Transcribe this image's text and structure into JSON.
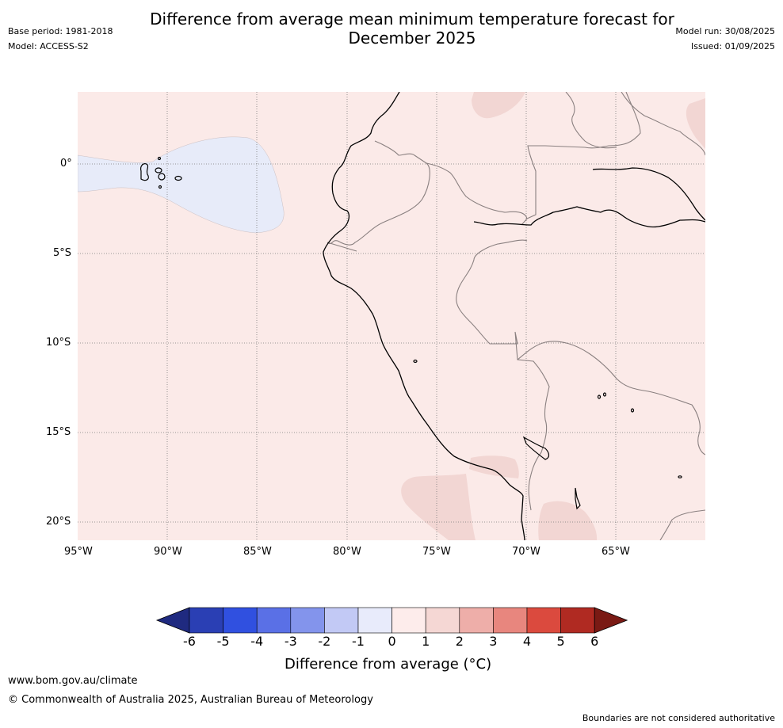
{
  "title_line1": "Difference from average mean minimum temperature forecast for",
  "title_line2": "December 2025",
  "base_period": "Base period: 1981-2018",
  "model": "Model: ACCESS-S2",
  "model_run": "Model run: 30/08/2025",
  "issued": "Issued: 01/09/2025",
  "map": {
    "lat_labels": [
      "0°",
      "5°S",
      "10°S",
      "15°S",
      "20°S"
    ],
    "lon_labels": [
      "95°W",
      "90°W",
      "85°W",
      "80°W",
      "75°W",
      "70°W",
      "65°W"
    ],
    "background_color": "#fbeae8",
    "cool_region_color": "#e7ebf9",
    "warm_region_color": "#f2d6d3"
  },
  "colorbar": {
    "ticks": [
      "-6",
      "-5",
      "-4",
      "-3",
      "-2",
      "-1",
      "0",
      "1",
      "2",
      "3",
      "4",
      "5",
      "6"
    ],
    "colors": [
      "#1f2a80",
      "#2a3fb4",
      "#3050e0",
      "#5a70e6",
      "#8394ec",
      "#c2c9f5",
      "#e8ebfb",
      "#fdeceb",
      "#f5d7d4",
      "#eeaea9",
      "#e8867e",
      "#db4a3e",
      "#b02a22",
      "#7a1a14"
    ],
    "label": "Difference from average (°C)"
  },
  "footer": {
    "url": "www.bom.gov.au/climate",
    "copyright": "© Commonwealth of Australia 2025, Australian Bureau of Meteorology",
    "disclaimer": "Boundaries are not considered authoritative"
  }
}
